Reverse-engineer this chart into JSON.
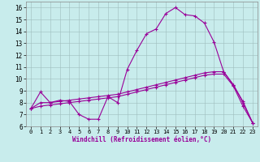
{
  "xlabel": "Windchill (Refroidissement éolien,°C)",
  "xlim": [
    -0.5,
    23.5
  ],
  "ylim": [
    6,
    16.5
  ],
  "xticks": [
    0,
    1,
    2,
    3,
    4,
    5,
    6,
    7,
    8,
    9,
    10,
    11,
    12,
    13,
    14,
    15,
    16,
    17,
    18,
    19,
    20,
    21,
    22,
    23
  ],
  "yticks": [
    6,
    7,
    8,
    9,
    10,
    11,
    12,
    13,
    14,
    15,
    16
  ],
  "bg_color": "#c8ecec",
  "line_color": "#990099",
  "line1_x": [
    0,
    1,
    2,
    3,
    4,
    5,
    6,
    7,
    8,
    9,
    10,
    11,
    12,
    13,
    14,
    15,
    16,
    17,
    18,
    19,
    20,
    21,
    22,
    23
  ],
  "line1_y": [
    7.5,
    8.9,
    8.0,
    8.2,
    8.1,
    7.0,
    6.6,
    6.6,
    8.5,
    8.0,
    10.8,
    12.4,
    13.8,
    14.2,
    15.5,
    16.0,
    15.4,
    15.3,
    14.7,
    13.1,
    10.6,
    9.5,
    8.1,
    6.3
  ],
  "line2_x": [
    0,
    1,
    2,
    3,
    4,
    5,
    6,
    7,
    8,
    9,
    10,
    11,
    12,
    13,
    14,
    15,
    16,
    17,
    18,
    19,
    20,
    21,
    22,
    23
  ],
  "line2_y": [
    7.5,
    8.0,
    8.0,
    8.1,
    8.2,
    8.3,
    8.4,
    8.5,
    8.6,
    8.7,
    8.9,
    9.1,
    9.3,
    9.5,
    9.7,
    9.9,
    10.1,
    10.3,
    10.5,
    10.6,
    10.6,
    9.5,
    8.0,
    6.3
  ],
  "line3_x": [
    0,
    1,
    2,
    3,
    4,
    5,
    6,
    7,
    8,
    9,
    10,
    11,
    12,
    13,
    14,
    15,
    16,
    17,
    18,
    19,
    20,
    21,
    22,
    23
  ],
  "line3_y": [
    7.5,
    7.7,
    7.8,
    7.9,
    8.0,
    8.1,
    8.2,
    8.3,
    8.4,
    8.5,
    8.7,
    8.9,
    9.1,
    9.3,
    9.5,
    9.7,
    9.9,
    10.1,
    10.3,
    10.4,
    10.4,
    9.4,
    7.7,
    6.3
  ]
}
